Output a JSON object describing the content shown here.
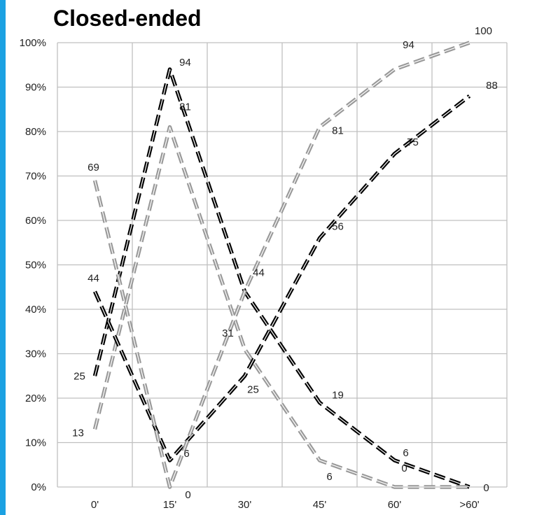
{
  "colors": {
    "accent_bar": "#1ba1e2",
    "black_series": "#000000",
    "gray_series": "#999999",
    "grid": "#c0c0c0"
  },
  "chart_data": {
    "type": "line",
    "title": "Closed-ended",
    "x": [
      "0'",
      "15'",
      "30'",
      "45'",
      "60'",
      ">60'"
    ],
    "ylim": [
      0,
      100
    ],
    "y_ticks": [
      "0%",
      "10%",
      "20%",
      "30%",
      "40%",
      "50%",
      "60%",
      "70%",
      "80%",
      "90%",
      "100%"
    ],
    "grid": true,
    "series": [
      {
        "color": "black",
        "values": [
          25,
          94,
          44,
          19,
          6,
          0
        ],
        "labels": [
          "25",
          "94",
          "44",
          "19",
          "6",
          "0"
        ]
      },
      {
        "color": "gray",
        "values": [
          13,
          81,
          31,
          6,
          0,
          0
        ],
        "labels": [
          "13",
          "81",
          "31",
          "6",
          "0",
          ""
        ]
      },
      {
        "color": "black",
        "values": [
          44,
          6,
          25,
          56,
          75,
          88
        ],
        "labels": [
          "44",
          "6",
          "25",
          "56",
          "75",
          "88"
        ]
      },
      {
        "color": "gray",
        "values": [
          69,
          0,
          44,
          81,
          94,
          100
        ],
        "labels": [
          "69",
          "0",
          "",
          "81",
          "94",
          "100"
        ]
      }
    ]
  }
}
